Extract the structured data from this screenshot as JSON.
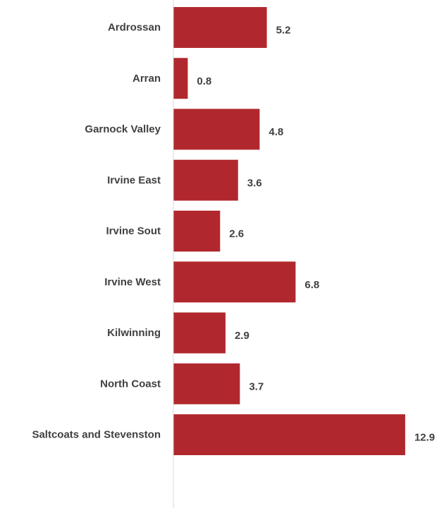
{
  "chart_data": {
    "type": "bar",
    "orientation": "horizontal",
    "categories": [
      "Ardrossan",
      "Arran",
      "Garnock Valley",
      "Irvine East",
      "Irvine Sout",
      "Irvine West",
      "Kilwinning",
      "North Coast",
      "Saltcoats and Stevenston"
    ],
    "values": [
      5.2,
      0.8,
      4.8,
      3.6,
      2.6,
      6.8,
      2.9,
      3.7,
      12.9
    ],
    "value_labels": [
      "5.2",
      "0.8",
      "4.8",
      "3.6",
      "2.6",
      "6.8",
      "2.9",
      "3.7",
      "12.9"
    ],
    "title": "",
    "xlabel": "",
    "ylabel": "",
    "xlim": [
      0,
      13
    ],
    "grid": false,
    "legend": "none",
    "data_labels": true
  },
  "colors": {
    "bar": "#b0282d",
    "axis": "#d9d9d9",
    "label_text": "#404040",
    "background": "#ffffff"
  }
}
